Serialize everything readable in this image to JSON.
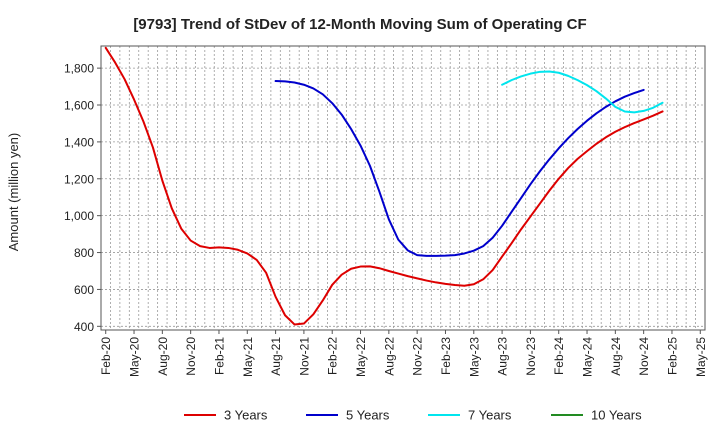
{
  "chart_data": {
    "type": "line",
    "title": "[9793]  Trend of StDev of 12-Month Moving Sum of Operating CF",
    "xlabel": "",
    "ylabel": "Amount (million yen)",
    "ylim": [
      380,
      1920
    ],
    "yticks": [
      400,
      600,
      800,
      1000,
      1200,
      1400,
      1600,
      1800
    ],
    "ytick_labels": [
      "400",
      "600",
      "800",
      "1,000",
      "1,200",
      "1,400",
      "1,600",
      "1,800"
    ],
    "x_start": "Feb-20",
    "x_count": 64,
    "x_tick_labels": [
      "Feb-20",
      "May-20",
      "Aug-20",
      "Nov-20",
      "Feb-21",
      "May-21",
      "Aug-21",
      "Nov-21",
      "Feb-22",
      "May-22",
      "Aug-22",
      "Nov-22",
      "Feb-23",
      "May-23",
      "Aug-23",
      "Nov-23",
      "Feb-24",
      "May-24",
      "Aug-24",
      "Nov-24",
      "Feb-25",
      "May-25"
    ],
    "grid": true,
    "legend_position": "bottom",
    "series": [
      {
        "name": "3 Years",
        "color": "#dd0000",
        "start_index": 0,
        "values": [
          1910,
          1830,
          1740,
          1630,
          1510,
          1370,
          1190,
          1040,
          930,
          865,
          835,
          825,
          828,
          825,
          815,
          795,
          760,
          690,
          560,
          460,
          410,
          415,
          465,
          540,
          625,
          680,
          712,
          724,
          725,
          715,
          700,
          686,
          672,
          660,
          648,
          638,
          630,
          624,
          620,
          628,
          655,
          705,
          778,
          850,
          925,
          995,
          1065,
          1135,
          1200,
          1258,
          1308,
          1350,
          1390,
          1425,
          1455,
          1480,
          1502,
          1522,
          1542,
          1565
        ]
      },
      {
        "name": "5 Years",
        "color": "#0000cc",
        "start_index": 18,
        "values": [
          1730,
          1728,
          1722,
          1710,
          1690,
          1658,
          1610,
          1548,
          1470,
          1380,
          1270,
          1130,
          980,
          870,
          812,
          786,
          782,
          782,
          783,
          786,
          795,
          810,
          835,
          880,
          945,
          1020,
          1095,
          1170,
          1240,
          1305,
          1365,
          1420,
          1470,
          1515,
          1555,
          1590,
          1620,
          1645,
          1665,
          1682
        ]
      },
      {
        "name": "7 Years",
        "color": "#00e5ee",
        "start_index": 42,
        "values": [
          1710,
          1735,
          1755,
          1770,
          1780,
          1782,
          1775,
          1758,
          1735,
          1708,
          1675,
          1635,
          1590,
          1565,
          1560,
          1568,
          1585,
          1612
        ]
      },
      {
        "name": "10 Years",
        "color": "#228b22",
        "start_index": 0,
        "values": []
      }
    ]
  }
}
